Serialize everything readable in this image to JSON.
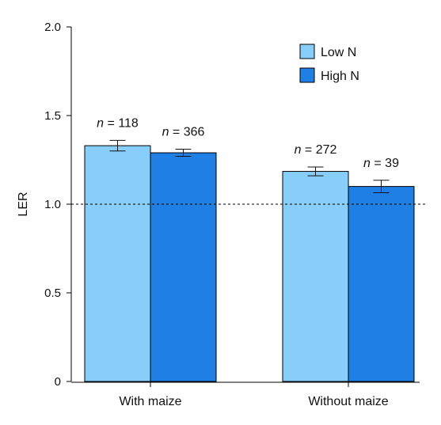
{
  "chart_data": {
    "type": "bar",
    "ylabel": "LER",
    "ylim": [
      0,
      2.0
    ],
    "yticks": [
      0,
      0.5,
      1.0,
      1.5,
      2.0
    ],
    "ytick_labels": [
      "0",
      "0.5",
      "1.0",
      "1.5",
      "2.0"
    ],
    "reference_line": 1.0,
    "categories": [
      "With maize",
      "Without maize"
    ],
    "series": [
      {
        "name": "Low N",
        "color": "#87cefa",
        "values": [
          1.33,
          1.185
        ],
        "err": [
          0.03,
          0.025
        ],
        "n_labels": [
          "n = 118",
          "n = 272"
        ]
      },
      {
        "name": "High N",
        "color": "#1f7fe5",
        "values": [
          1.29,
          1.1
        ],
        "err": [
          0.02,
          0.035
        ],
        "n_labels": [
          "n = 366",
          "n = 39"
        ]
      }
    ],
    "legend_position": "top-right",
    "grid": false
  }
}
